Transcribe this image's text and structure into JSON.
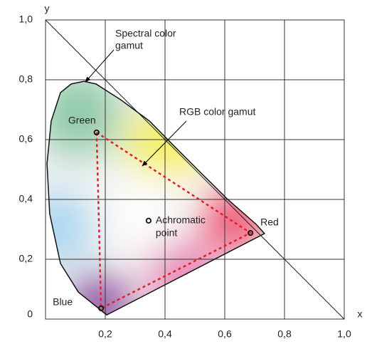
{
  "chart_data": {
    "type": "scatter",
    "xlabel": "x",
    "ylabel": "y",
    "xlim": [
      0,
      1
    ],
    "ylim": [
      0,
      1
    ],
    "xticks": [
      {
        "value": 0.2,
        "label": "0,2"
      },
      {
        "value": 0.4,
        "label": "0,4"
      },
      {
        "value": 0.6,
        "label": "0,6"
      },
      {
        "value": 0.8,
        "label": "0,8"
      },
      {
        "value": 1.0,
        "label": "1,0"
      }
    ],
    "yticks": [
      0,
      {
        "value": 0.2,
        "label": "0,2"
      },
      {
        "value": 0.4,
        "label": "0,4"
      },
      {
        "value": 0.6,
        "label": "0,6"
      },
      {
        "value": 0.8,
        "label": "0,8"
      },
      {
        "value": 1.0,
        "label": "1,0"
      }
    ],
    "grid": true,
    "spectral_locus": {
      "label": [
        "Spectral color",
        "gamut"
      ],
      "x": [
        0.205,
        0.11,
        0.05,
        0.014,
        0.005,
        0.019,
        0.05,
        0.086,
        0.129,
        0.169,
        0.252,
        0.348,
        0.419,
        0.514,
        0.61,
        0.705,
        0.733
      ],
      "y": [
        0.014,
        0.09,
        0.186,
        0.352,
        0.519,
        0.662,
        0.757,
        0.786,
        0.795,
        0.786,
        0.733,
        0.662,
        0.59,
        0.495,
        0.4,
        0.317,
        0.286
      ]
    },
    "rgb_gamut_label": "RGB color gamut",
    "triangle_color": "#e0202a",
    "points": [
      {
        "label": [
          "Green"
        ],
        "x": 0.171,
        "y": 0.624
      },
      {
        "label": [
          "Red"
        ],
        "x": 0.686,
        "y": 0.288
      },
      {
        "label": [
          "Blue"
        ],
        "x": 0.186,
        "y": 0.036
      },
      {
        "label": [
          "Achromatic",
          "point"
        ],
        "x": 0.345,
        "y": 0.329
      }
    ]
  }
}
